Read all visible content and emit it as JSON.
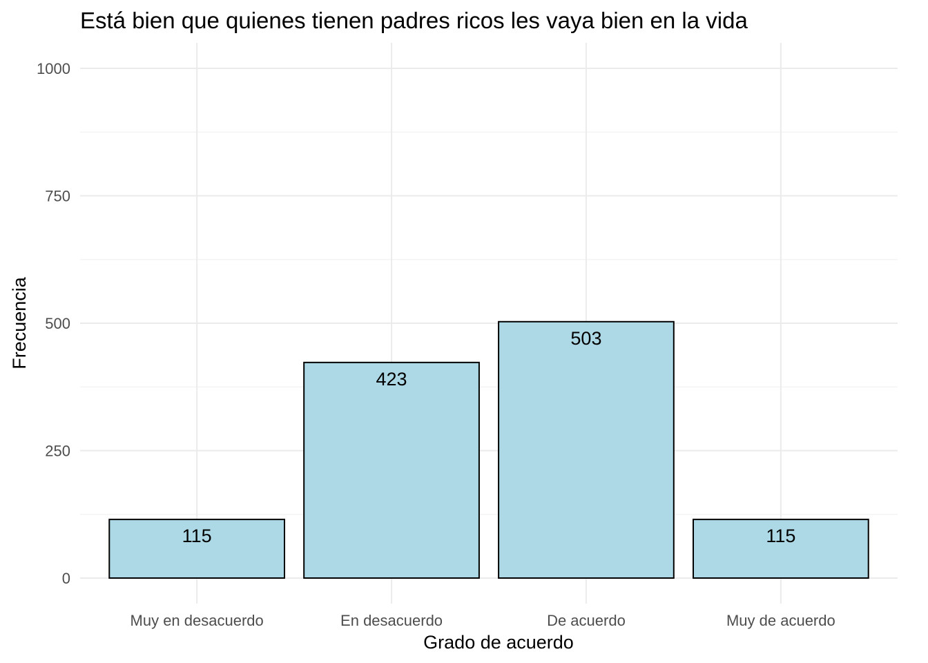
{
  "chart_data": {
    "type": "bar",
    "title": "Está bien que quienes tienen padres ricos les vaya bien en la vida",
    "xlabel": "Grado de acuerdo",
    "ylabel": "Frecuencia",
    "categories": [
      "Muy en desacuerdo",
      "En desacuerdo",
      "De acuerdo",
      "Muy de acuerdo"
    ],
    "values": [
      115,
      423,
      503,
      115
    ],
    "data_labels": [
      "115",
      "423",
      "503",
      "115"
    ],
    "ylim": [
      -50,
      1050
    ],
    "y_ticks": [
      0,
      250,
      500,
      750,
      1000
    ],
    "y_tick_labels": [
      "0",
      "250",
      "500",
      "750",
      "1000"
    ],
    "y_minor_ticks": [
      125,
      375,
      625,
      875
    ],
    "grid": true,
    "legend": "none",
    "colors": {
      "bar_fill": "#add8e6",
      "bar_stroke": "#000000",
      "grid": "#ebebeb"
    }
  }
}
